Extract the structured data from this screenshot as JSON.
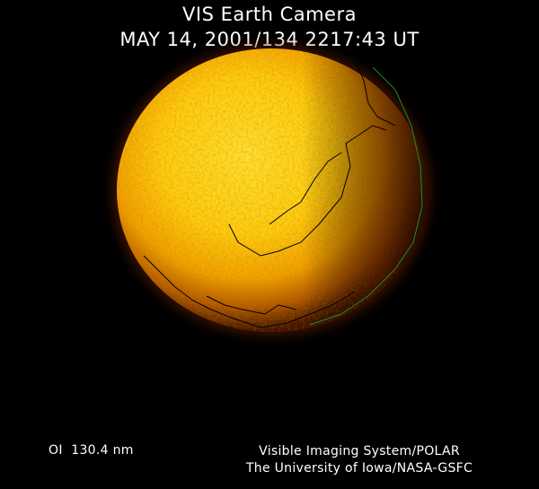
{
  "header": {
    "title": "VIS Earth Camera",
    "timestamp": "MAY 14, 2001/134 2217:43 UT"
  },
  "image": {
    "subject": "earth-disk",
    "colors": {
      "bright": "#ffd820",
      "mid": "#f0a000",
      "dark": "#6a2000",
      "coastline": "#000000",
      "terminator_line": "#1f8f1f"
    }
  },
  "footer": {
    "band": "OI  130.4 nm",
    "instrument": "Visible Imaging System/POLAR",
    "institution": "The University of Iowa/NASA-GSFC"
  }
}
